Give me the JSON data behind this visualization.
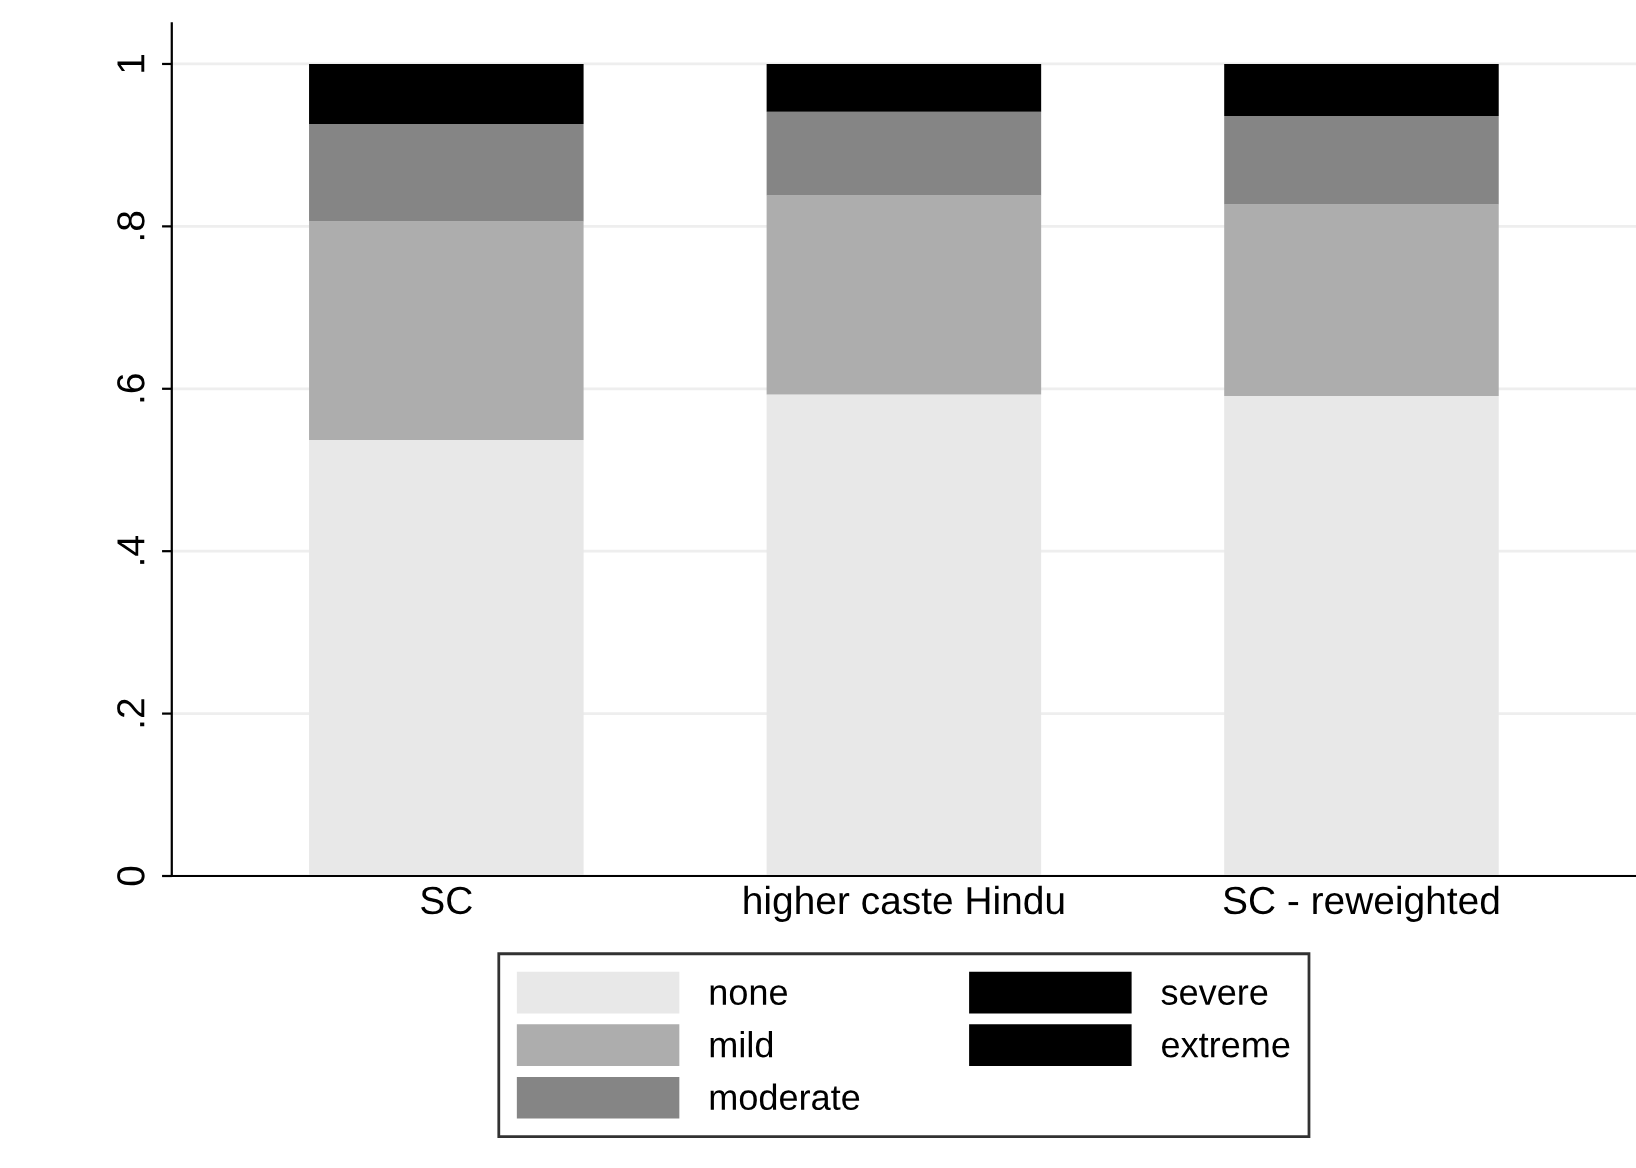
{
  "chart_data": {
    "type": "bar",
    "stacked": true,
    "categories": [
      "SC",
      "higher caste Hindu",
      "SC - reweighted"
    ],
    "series": [
      {
        "name": "none",
        "color": "#e8e8e8",
        "values": [
          0.537,
          0.593,
          0.591
        ]
      },
      {
        "name": "mild",
        "color": "#adadad",
        "values": [
          0.269,
          0.245,
          0.236
        ]
      },
      {
        "name": "moderate",
        "color": "#858585",
        "values": [
          0.12,
          0.103,
          0.109
        ]
      },
      {
        "name": "severe",
        "color": "#000000",
        "values": [
          0.074,
          0.059,
          0.064
        ]
      },
      {
        "name": "extreme",
        "color": "#000000",
        "values": [
          null,
          null,
          null
        ]
      }
    ],
    "ylim": [
      0,
      1.05
    ],
    "yticks": [
      {
        "value": 0,
        "label": "0"
      },
      {
        "value": 0.2,
        "label": ".2"
      },
      {
        "value": 0.4,
        "label": ".4"
      },
      {
        "value": 0.6,
        "label": ".6"
      },
      {
        "value": 0.8,
        "label": ".8"
      },
      {
        "value": 1,
        "label": "1"
      }
    ],
    "grid": "y",
    "legend": "bottom"
  }
}
